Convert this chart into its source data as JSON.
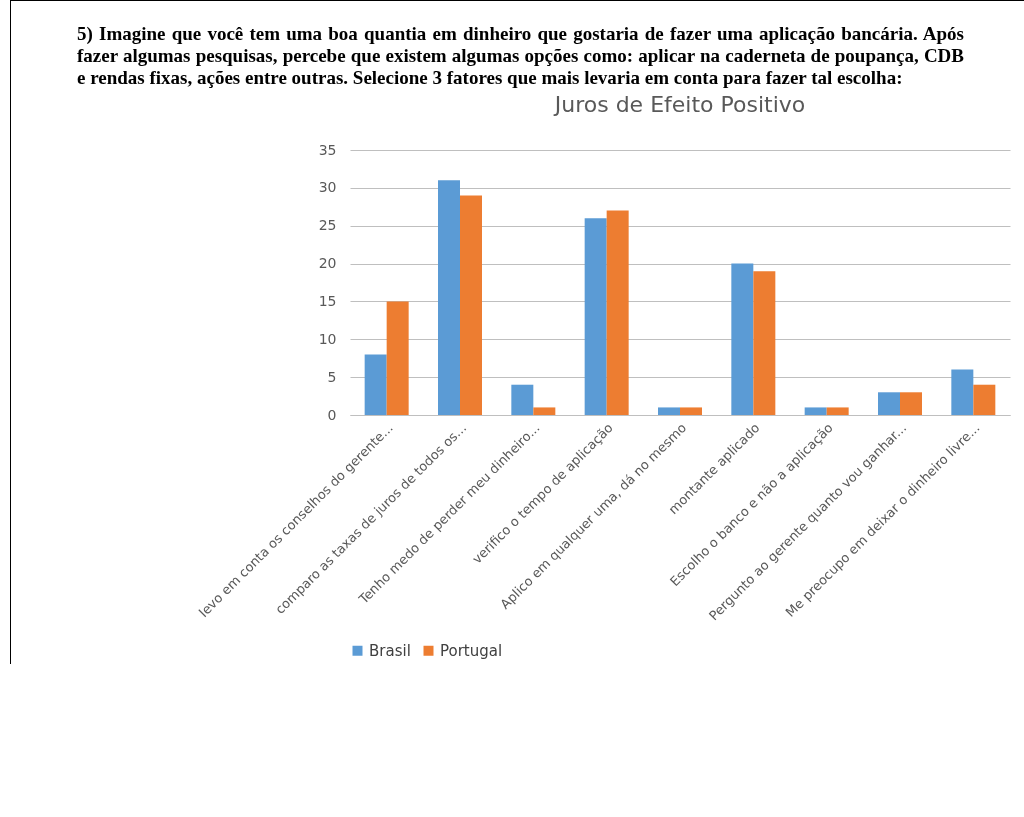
{
  "chart_data": {
    "type": "bar",
    "title": "Juros de Efeito Positivo",
    "annotations": [
      "5) Imagine que você tem uma boa quantia em dinheiro que gostaria de fazer uma aplicação bancária. Após fazer algumas pesquisas, percebe que existem algumas opções como: aplicar na caderneta de poupança, CDB e rendas fixas, ações entre outras. Selecione 3 fatores que mais levaria em conta para fazer tal escolha:"
    ],
    "categories": [
      "levo em conta os conselhos do gerente...",
      "comparo as taxas de juros de todos os...",
      "Tenho medo de perder meu dinheiro...",
      "verifico o tempo de aplicação",
      "Aplico em qualquer uma, dá no mesmo",
      "montante aplicado",
      "Escolho o banco e não a aplicação",
      "Pergunto ao gerente quanto vou ganhar...",
      "Me preocupo em deixar o dinheiro livre..."
    ],
    "series": [
      {
        "name": "Brasil",
        "color": "#5b9bd5",
        "values": [
          8,
          31,
          4,
          26,
          1,
          20,
          1,
          3,
          6
        ]
      },
      {
        "name": "Portugal",
        "color": "#ed7d31",
        "values": [
          15,
          29,
          1,
          27,
          1,
          19,
          1,
          3,
          4
        ]
      }
    ],
    "ylim": [
      0,
      35
    ],
    "yticks": [
      0,
      5,
      10,
      15,
      20,
      25,
      30,
      35
    ],
    "grid": "y",
    "legend": "bottom"
  }
}
